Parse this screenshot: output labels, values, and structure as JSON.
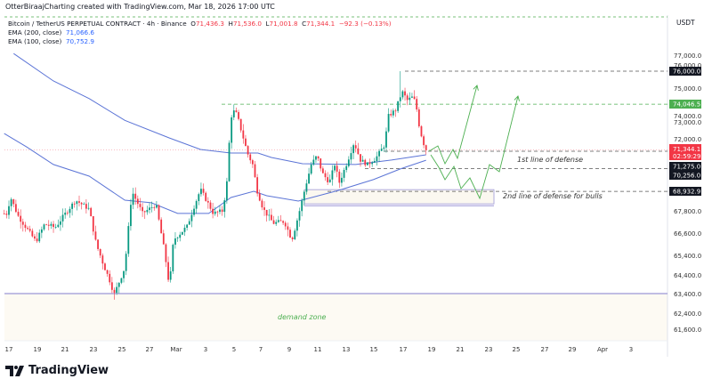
{
  "credit": "OtterBiraajCharting created with TradingView.com, Mar 18, 2026 17:00 UTC",
  "legend": {
    "symbol": "Bitcoin / TetherUS PERPETUAL CONTRACT · 4h · Binance",
    "o_label": "O",
    "o": "71,436.3",
    "h_label": "H",
    "h": "71,536.0",
    "l_label": "L",
    "l": "71,001.8",
    "c_label": "C",
    "c": "71,344.1",
    "change": "−92.3 (−0.13%)",
    "ema200_label": "EMA (200, close)",
    "ema200": "71,066.6",
    "ema100_label": "EMA (100, close)",
    "ema100": "70,752.9"
  },
  "currency": "USDT",
  "brand": "TradingView",
  "colors": {
    "up": "#089981",
    "down": "#f23645",
    "ema": "#5b74d6",
    "green_line": "#4caf50",
    "zone": "#fdfaf3",
    "purple": "#9c96d6",
    "projection": "#4caf50"
  },
  "chart_data": {
    "type": "candlestick",
    "interval": "4h",
    "y_ticks": [
      "77,000.0",
      "76,000.0",
      "75,000.0",
      "74,000.0",
      "73,000.0",
      "72,000.0",
      "67,800.0",
      "66,600.0",
      "65,400.0",
      "64,400.0",
      "63,400.0",
      "62,400.0",
      "61,600.0"
    ],
    "x_ticks": [
      "17",
      "19",
      "21",
      "23",
      "25",
      "27",
      "Mar",
      "3",
      "5",
      "7",
      "9",
      "11",
      "13",
      "15",
      "17",
      "19",
      "21",
      "23",
      "25",
      "27",
      "29",
      "Apr",
      "3"
    ],
    "price_path": [
      [
        "2026-02-16T20:00",
        67650
      ],
      [
        "2026-02-17T03:00",
        68580
      ],
      [
        "2026-02-17T15:00",
        67560
      ],
      [
        "2026-02-18T22:00",
        66140
      ],
      [
        "2026-02-19T13:00",
        67090
      ],
      [
        "2026-02-20T07:00",
        66900
      ],
      [
        "2026-02-21T18:00",
        68420
      ],
      [
        "2026-02-22T17:00",
        67900
      ],
      [
        "2026-02-23T05:00",
        66000
      ],
      [
        "2026-02-23T16:00",
        65050
      ],
      [
        "2026-02-24T07:00",
        63870
      ],
      [
        "2026-02-24T11:00",
        63300
      ],
      [
        "2026-02-25T06:00",
        64810
      ],
      [
        "2026-02-25T18:00",
        68940
      ],
      [
        "2026-02-26T12:00",
        67660
      ],
      [
        "2026-02-27T11:00",
        68170
      ],
      [
        "2026-02-28T02:00",
        65520
      ],
      [
        "2026-02-28T10:00",
        63770
      ],
      [
        "2026-02-28T17:00",
        66240
      ],
      [
        "2026-03-01T16:00",
        66950
      ],
      [
        "2026-03-02T15:00",
        69050
      ],
      [
        "2026-03-03T13:00",
        67660
      ],
      [
        "2026-03-04T05:00",
        67800
      ],
      [
        "2026-03-04T12:00",
        69460
      ],
      [
        "2026-03-04T17:00",
        72310
      ],
      [
        "2026-03-04T21:00",
        73710
      ],
      [
        "2026-03-05T05:00",
        73450
      ],
      [
        "2026-03-05T14:00",
        72310
      ],
      [
        "2026-03-05T23:00",
        71170
      ],
      [
        "2026-03-06T08:00",
        70500
      ],
      [
        "2026-03-06T16:00",
        68940
      ],
      [
        "2026-03-07T02:00",
        67900
      ],
      [
        "2026-03-07T19:00",
        67140
      ],
      [
        "2026-03-08T14:00",
        67230
      ],
      [
        "2026-03-09T03:00",
        66240
      ],
      [
        "2026-03-09T15:00",
        67660
      ],
      [
        "2026-03-10T02:00",
        69200
      ],
      [
        "2026-03-10T12:00",
        70500
      ],
      [
        "2026-03-10T22:00",
        71020
      ],
      [
        "2026-03-11T07:00",
        69980
      ],
      [
        "2026-03-11T19:00",
        69460
      ],
      [
        "2026-03-12T04:00",
        70500
      ],
      [
        "2026-03-12T12:00",
        69460
      ],
      [
        "2026-03-13T01:00",
        70600
      ],
      [
        "2026-03-13T13:00",
        71790
      ],
      [
        "2026-03-14T00:00",
        70760
      ],
      [
        "2026-03-14T12:00",
        70500
      ],
      [
        "2026-03-15T02:00",
        70860
      ],
      [
        "2026-03-15T17:00",
        71640
      ],
      [
        "2026-03-16T00:00",
        73350
      ],
      [
        "2026-03-16T12:00",
        73710
      ],
      [
        "2026-03-16T23:00",
        74800
      ],
      [
        "2026-03-17T08:00",
        74280
      ],
      [
        "2026-03-17T16:00",
        74450
      ],
      [
        "2026-03-17T22:00",
        74200
      ],
      [
        "2026-03-18T04:00",
        72830
      ],
      [
        "2026-03-18T10:00",
        71900
      ],
      [
        "2026-03-18T16:00",
        71344.1
      ]
    ],
    "session_high": [
      "2026-03-16T20:00",
      76000
    ],
    "ema200": [
      [
        "2026-02-17T08:00",
        77100
      ],
      [
        "2026-02-20T04:00",
        75420
      ],
      [
        "2026-02-22T17:00",
        74380
      ],
      [
        "2026-02-25T06:00",
        73090
      ],
      [
        "2026-02-28T10:00",
        72050
      ],
      [
        "2026-03-02T15:00",
        71380
      ],
      [
        "2026-03-04T19:00",
        71170
      ],
      [
        "2026-03-06T17:00",
        71170
      ],
      [
        "2026-03-07T16:00",
        70910
      ],
      [
        "2026-03-09T21:00",
        70550
      ],
      [
        "2026-03-13T16:00",
        70500
      ],
      [
        "2026-03-16T05:00",
        70760
      ],
      [
        "2026-03-18T16:00",
        71066.6
      ]
    ],
    "ema100": [
      [
        "2026-02-16T16:00",
        72310
      ],
      [
        "2026-02-18T06:00",
        71530
      ],
      [
        "2026-02-20T04:00",
        70500
      ],
      [
        "2026-02-22T17:00",
        69820
      ],
      [
        "2026-02-25T06:00",
        68420
      ],
      [
        "2026-02-27T03:00",
        68270
      ],
      [
        "2026-03-01T00:00",
        67660
      ],
      [
        "2026-03-03T05:00",
        67660
      ],
      [
        "2026-03-04T19:00",
        68580
      ],
      [
        "2026-03-06T10:00",
        68940
      ],
      [
        "2026-03-07T08:00",
        68680
      ],
      [
        "2026-03-09T14:00",
        68370
      ],
      [
        "2026-03-12T10:00",
        68990
      ],
      [
        "2026-03-14T22:00",
        69620
      ],
      [
        "2026-03-16T20:00",
        70240
      ],
      [
        "2026-03-18T16:00",
        70752.9
      ]
    ],
    "levels": [
      {
        "price": 76000,
        "label": "76,000.0",
        "style": "dashed-black"
      },
      {
        "price": 74046.5,
        "label": "74,046.5",
        "style": "dashed-green"
      },
      {
        "price": 71344.1,
        "label": "71,344.1",
        "countdown": "02:59:29",
        "style": "current-price"
      },
      {
        "price": 71275,
        "label": "71,275.0",
        "style": "dashed-black"
      },
      {
        "price": 70256,
        "label": "70,256.0",
        "style": "dashed-black"
      },
      {
        "price": 68932.9,
        "label": "68,932.9",
        "style": "dashed-black"
      },
      {
        "price": 63400,
        "style": "solid-purple"
      }
    ],
    "annotations": {
      "first_defense": "1st line of defense",
      "second_defense": "2nd line of defense for bulls",
      "demand_zone": "demand zone"
    }
  }
}
